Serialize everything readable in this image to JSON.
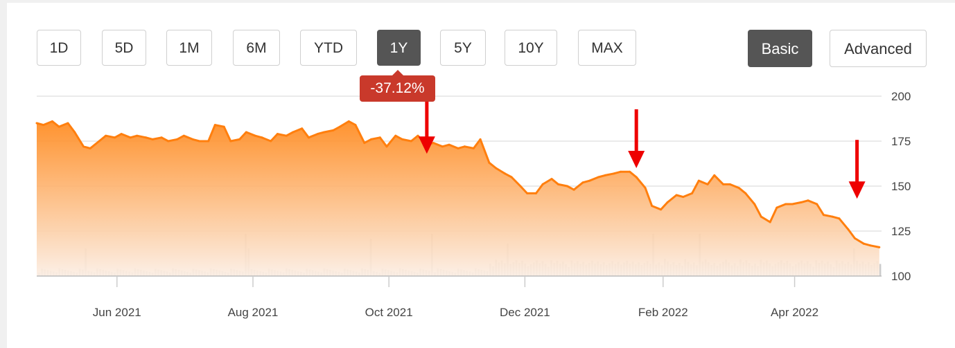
{
  "range_buttons": [
    {
      "label": "1D",
      "active": false
    },
    {
      "label": "5D",
      "active": false
    },
    {
      "label": "1M",
      "active": false
    },
    {
      "label": "6M",
      "active": false
    },
    {
      "label": "YTD",
      "active": false
    },
    {
      "label": "1Y",
      "active": true
    },
    {
      "label": "5Y",
      "active": false
    },
    {
      "label": "10Y",
      "active": false
    },
    {
      "label": "MAX",
      "active": false
    }
  ],
  "mode_buttons": [
    {
      "label": "Basic",
      "active": true
    },
    {
      "label": "Advanced",
      "active": false
    }
  ],
  "change_badge": "-37.12%",
  "colors": {
    "line": "#ff7f0e",
    "fill_top": "#ff8a1e",
    "fill_bottom": "#fbeee4",
    "volume": "#cccccc",
    "arrow": "#ee0000",
    "grid": "#e3e3e3",
    "badge": "#c9392b"
  },
  "chart_data": {
    "type": "area",
    "ylim": [
      100,
      200
    ],
    "y_ticks": [
      "200",
      "175",
      "150",
      "125",
      "100"
    ],
    "x_tick_labels": [
      "Jun 2021",
      "Aug 2021",
      "Oct 2021",
      "Dec 2021",
      "Feb 2022",
      "Apr 2022"
    ],
    "x_range": [
      "2021-04-26",
      "2022-05-10"
    ],
    "grid": true,
    "series": [
      {
        "points": [
          [
            "2021-04-26",
            185
          ],
          [
            "2021-04-29",
            184
          ],
          [
            "2021-05-03",
            186
          ],
          [
            "2021-05-06",
            183
          ],
          [
            "2021-05-10",
            185
          ],
          [
            "2021-05-13",
            180
          ],
          [
            "2021-05-17",
            172
          ],
          [
            "2021-05-20",
            171
          ],
          [
            "2021-05-24",
            175
          ],
          [
            "2021-05-27",
            178
          ],
          [
            "2021-05-31",
            177
          ],
          [
            "2021-06-03",
            179
          ],
          [
            "2021-06-07",
            177
          ],
          [
            "2021-06-10",
            178
          ],
          [
            "2021-06-14",
            177
          ],
          [
            "2021-06-17",
            176
          ],
          [
            "2021-06-21",
            177
          ],
          [
            "2021-06-24",
            175
          ],
          [
            "2021-06-28",
            176
          ],
          [
            "2021-07-01",
            178
          ],
          [
            "2021-07-05",
            176
          ],
          [
            "2021-07-08",
            175
          ],
          [
            "2021-07-12",
            175
          ],
          [
            "2021-07-15",
            184
          ],
          [
            "2021-07-19",
            183
          ],
          [
            "2021-07-22",
            175
          ],
          [
            "2021-07-26",
            176
          ],
          [
            "2021-07-29",
            180
          ],
          [
            "2021-08-02",
            178
          ],
          [
            "2021-08-05",
            177
          ],
          [
            "2021-08-09",
            175
          ],
          [
            "2021-08-12",
            179
          ],
          [
            "2021-08-16",
            178
          ],
          [
            "2021-08-19",
            180
          ],
          [
            "2021-08-23",
            182
          ],
          [
            "2021-08-26",
            177
          ],
          [
            "2021-08-30",
            179
          ],
          [
            "2021-09-02",
            180
          ],
          [
            "2021-09-06",
            181
          ],
          [
            "2021-09-09",
            183
          ],
          [
            "2021-09-13",
            186
          ],
          [
            "2021-09-16",
            184
          ],
          [
            "2021-09-20",
            174
          ],
          [
            "2021-09-23",
            176
          ],
          [
            "2021-09-27",
            177
          ],
          [
            "2021-09-30",
            172
          ],
          [
            "2021-10-04",
            178
          ],
          [
            "2021-10-07",
            176
          ],
          [
            "2021-10-11",
            175
          ],
          [
            "2021-10-14",
            178
          ],
          [
            "2021-10-18",
            173
          ],
          [
            "2021-10-21",
            174
          ],
          [
            "2021-10-25",
            172
          ],
          [
            "2021-10-28",
            173
          ],
          [
            "2021-11-01",
            171
          ],
          [
            "2021-11-04",
            172
          ],
          [
            "2021-11-08",
            171
          ],
          [
            "2021-11-11",
            176
          ],
          [
            "2021-11-15",
            163
          ],
          [
            "2021-11-18",
            160
          ],
          [
            "2021-11-22",
            157
          ],
          [
            "2021-11-25",
            155
          ],
          [
            "2021-11-29",
            150
          ],
          [
            "2021-12-02",
            146
          ],
          [
            "2021-12-06",
            146
          ],
          [
            "2021-12-09",
            151
          ],
          [
            "2021-12-13",
            154
          ],
          [
            "2021-12-16",
            151
          ],
          [
            "2021-12-20",
            150
          ],
          [
            "2021-12-23",
            148
          ],
          [
            "2021-12-27",
            152
          ],
          [
            "2021-12-30",
            153
          ],
          [
            "2022-01-03",
            155
          ],
          [
            "2022-01-06",
            156
          ],
          [
            "2022-01-10",
            157
          ],
          [
            "2022-01-13",
            158
          ],
          [
            "2022-01-17",
            158
          ],
          [
            "2022-01-20",
            155
          ],
          [
            "2022-01-24",
            149
          ],
          [
            "2022-01-27",
            139
          ],
          [
            "2022-01-31",
            137
          ],
          [
            "2022-02-03",
            141
          ],
          [
            "2022-02-07",
            145
          ],
          [
            "2022-02-10",
            144
          ],
          [
            "2022-02-14",
            146
          ],
          [
            "2022-02-17",
            153
          ],
          [
            "2022-02-21",
            151
          ],
          [
            "2022-02-24",
            156
          ],
          [
            "2022-02-28",
            151
          ],
          [
            "2022-03-03",
            151
          ],
          [
            "2022-03-07",
            149
          ],
          [
            "2022-03-10",
            146
          ],
          [
            "2022-03-14",
            140
          ],
          [
            "2022-03-17",
            133
          ],
          [
            "2022-03-21",
            130
          ],
          [
            "2022-03-24",
            138
          ],
          [
            "2022-03-28",
            140
          ],
          [
            "2022-03-31",
            140
          ],
          [
            "2022-04-04",
            141
          ],
          [
            "2022-04-07",
            142
          ],
          [
            "2022-04-11",
            140
          ],
          [
            "2022-04-14",
            134
          ],
          [
            "2022-04-18",
            133
          ],
          [
            "2022-04-21",
            132
          ],
          [
            "2022-04-25",
            126
          ],
          [
            "2022-04-28",
            121
          ],
          [
            "2022-05-02",
            118
          ],
          [
            "2022-05-05",
            117
          ],
          [
            "2022-05-09",
            116
          ]
        ]
      }
    ],
    "volume_spikes": [
      "2021-05-17",
      "2021-07-29",
      "2021-09-22",
      "2021-10-20",
      "2021-11-23",
      "2022-01-27",
      "2022-02-17",
      "2022-04-27"
    ],
    "annotations": [
      {
        "type": "arrow-down",
        "date": "2021-10-18",
        "value": 168
      },
      {
        "type": "arrow-down",
        "date": "2022-01-20",
        "value": 160
      },
      {
        "type": "arrow-down",
        "date": "2022-04-29",
        "value": 143
      }
    ]
  }
}
